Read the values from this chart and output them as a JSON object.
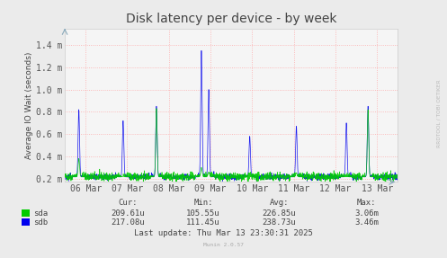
{
  "title": "Disk latency per device - by week",
  "ylabel": "Average IO Wait (seconds)",
  "background_color": "#EBEBEB",
  "plot_background": "#F5F5F5",
  "grid_color": "#FF9999",
  "ylim_low": 0.00017,
  "ylim_high": 0.00155,
  "yticks": [
    0.0002,
    0.0004,
    0.0006,
    0.0008,
    0.001,
    0.0012,
    0.0014
  ],
  "ytick_labels": [
    "0.2 m",
    "0.4 m",
    "0.6 m",
    "0.8 m",
    "1.0 m",
    "1.2 m",
    "1.4 m"
  ],
  "xtick_labels": [
    "06 Mar",
    "07 Mar",
    "08 Mar",
    "09 Mar",
    "10 Mar",
    "11 Mar",
    "12 Mar",
    "13 Mar"
  ],
  "sda_color": "#00CC00",
  "sdb_color": "#0000EE",
  "stats_header": [
    "Cur:",
    "Min:",
    "Avg:",
    "Max:"
  ],
  "stats_sda": [
    "209.61u",
    "105.55u",
    "226.85u",
    "3.06m"
  ],
  "stats_sdb": [
    "217.08u",
    "111.45u",
    "238.73u",
    "3.46m"
  ],
  "last_update": "Last update: Thu Mar 13 23:30:31 2025",
  "munin_version": "Munin 2.0.57",
  "rrdtool_label": "RRDTOOL / TOBI OETIKER",
  "title_fontsize": 10,
  "axis_fontsize": 7,
  "stats_fontsize": 6.5,
  "n_points": 2000,
  "base_level": 0.000215,
  "noise_scale": 1.8e-05,
  "spike_positions_sdb": [
    0.042,
    0.175,
    0.275,
    0.41,
    0.432,
    0.555,
    0.695,
    0.845,
    0.91
  ],
  "spike_heights_sdb": [
    0.00082,
    0.00072,
    0.00085,
    0.00135,
    0.001,
    0.00058,
    0.00067,
    0.0007,
    0.00085
  ],
  "spike_positions_sda": [
    0.042,
    0.175,
    0.275,
    0.41,
    0.432,
    0.695,
    0.845,
    0.91
  ],
  "spike_heights_sda": [
    0.00038,
    0.00022,
    0.00083,
    0.0003,
    0.00026,
    0.00025,
    0.00022,
    0.00082
  ]
}
